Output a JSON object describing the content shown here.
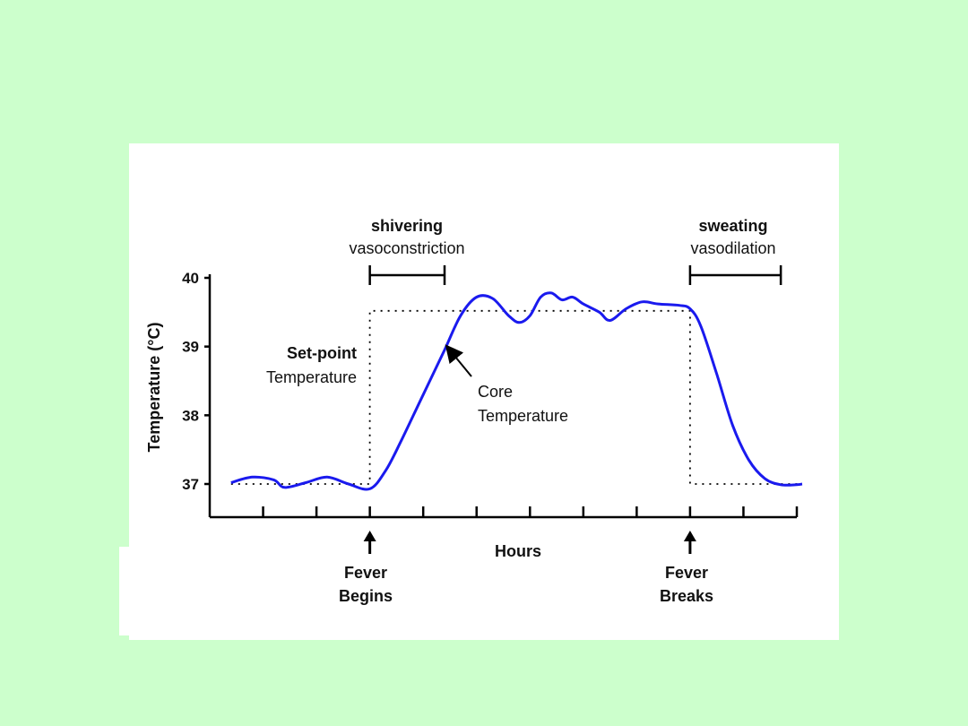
{
  "colors": {
    "background": "#ccffcc",
    "panel": "#ffffff",
    "core_line": "#1a1aee",
    "axis": "#000000"
  },
  "chart_data": {
    "type": "line",
    "title": "",
    "xlabel": "Hours",
    "ylabel": "Temperature (°C)",
    "ylim": [
      36.55,
      40
    ],
    "y_ticks": [
      "37",
      "38",
      "39",
      "40"
    ],
    "x_tick_count": 11,
    "x_range": [
      0,
      11
    ],
    "grid": false,
    "series": [
      {
        "name": "Core Temperature",
        "style": "solid",
        "color": "#1a1aee",
        "points": [
          [
            0.4,
            37.02
          ],
          [
            0.8,
            37.1
          ],
          [
            1.2,
            37.06
          ],
          [
            1.4,
            36.95
          ],
          [
            1.8,
            37.02
          ],
          [
            2.2,
            37.1
          ],
          [
            2.6,
            37.0
          ],
          [
            3.0,
            36.93
          ],
          [
            3.3,
            37.2
          ],
          [
            3.6,
            37.65
          ],
          [
            4.0,
            38.3
          ],
          [
            4.4,
            38.95
          ],
          [
            4.7,
            39.45
          ],
          [
            5.0,
            39.72
          ],
          [
            5.3,
            39.7
          ],
          [
            5.6,
            39.45
          ],
          [
            5.8,
            39.35
          ],
          [
            6.0,
            39.45
          ],
          [
            6.2,
            39.72
          ],
          [
            6.4,
            39.78
          ],
          [
            6.6,
            39.68
          ],
          [
            6.8,
            39.72
          ],
          [
            7.0,
            39.62
          ],
          [
            7.3,
            39.5
          ],
          [
            7.5,
            39.38
          ],
          [
            7.8,
            39.55
          ],
          [
            8.1,
            39.65
          ],
          [
            8.4,
            39.62
          ],
          [
            8.8,
            39.6
          ],
          [
            9.0,
            39.55
          ],
          [
            9.2,
            39.3
          ],
          [
            9.5,
            38.6
          ],
          [
            9.8,
            37.85
          ],
          [
            10.1,
            37.35
          ],
          [
            10.4,
            37.08
          ],
          [
            10.7,
            36.99
          ],
          [
            11.0,
            36.99
          ],
          [
            11.1,
            37.0
          ]
        ]
      },
      {
        "name": "Set-point Temperature",
        "style": "dotted",
        "color": "#000000",
        "points": [
          [
            0.4,
            37.0
          ],
          [
            3.0,
            37.0
          ],
          [
            3.0,
            39.52
          ],
          [
            9.0,
            39.52
          ],
          [
            9.0,
            37.0
          ],
          [
            11.1,
            37.0
          ]
        ]
      }
    ],
    "annotations": {
      "shivering_top": "shivering",
      "shivering_bottom": "vasoconstriction",
      "sweating_top": "sweating",
      "sweating_bottom": "vasodilation",
      "setpoint_line1": "Set-point",
      "setpoint_line2": "Temperature",
      "core_line1": "Core",
      "core_line2": "Temperature",
      "fever_begins_line1": "Fever",
      "fever_begins_line2": "Begins",
      "fever_breaks_line1": "Fever",
      "fever_breaks_line2": "Breaks"
    },
    "brackets": {
      "shivering_range": [
        3.0,
        4.4
      ],
      "sweating_range": [
        9.0,
        10.7
      ]
    },
    "event_hours": {
      "fever_begins": 3.0,
      "fever_breaks": 9.0
    }
  }
}
